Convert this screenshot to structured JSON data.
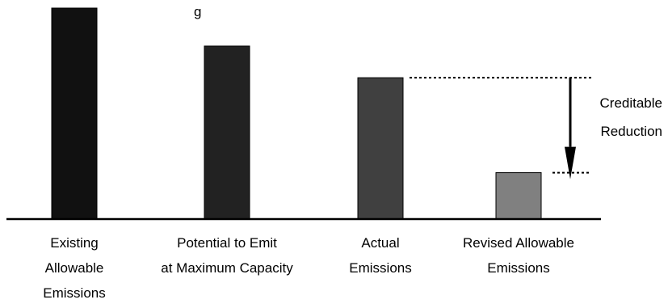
{
  "chart_data": {
    "type": "bar",
    "title_fragment": "g",
    "categories": [
      [
        "Existing",
        "Allowable",
        "Emissions"
      ],
      [
        "Potential to Emit",
        "at Maximum Capacity"
      ],
      [
        "Actual",
        "Emissions"
      ],
      [
        "Revised Allowable",
        "Emissions"
      ]
    ],
    "values": [
      100,
      82,
      67,
      22
    ],
    "ylim": [
      0,
      100
    ],
    "bar_colors": [
      "#111111",
      "#222222",
      "#404040",
      "#808080"
    ],
    "axes_visible": false,
    "grid": false,
    "legend": "none",
    "annotation": {
      "label": [
        "Creditable",
        "Reduction"
      ],
      "from_value": 67,
      "to_value": 22,
      "style": "dotted-lines-with-down-arrow"
    }
  }
}
